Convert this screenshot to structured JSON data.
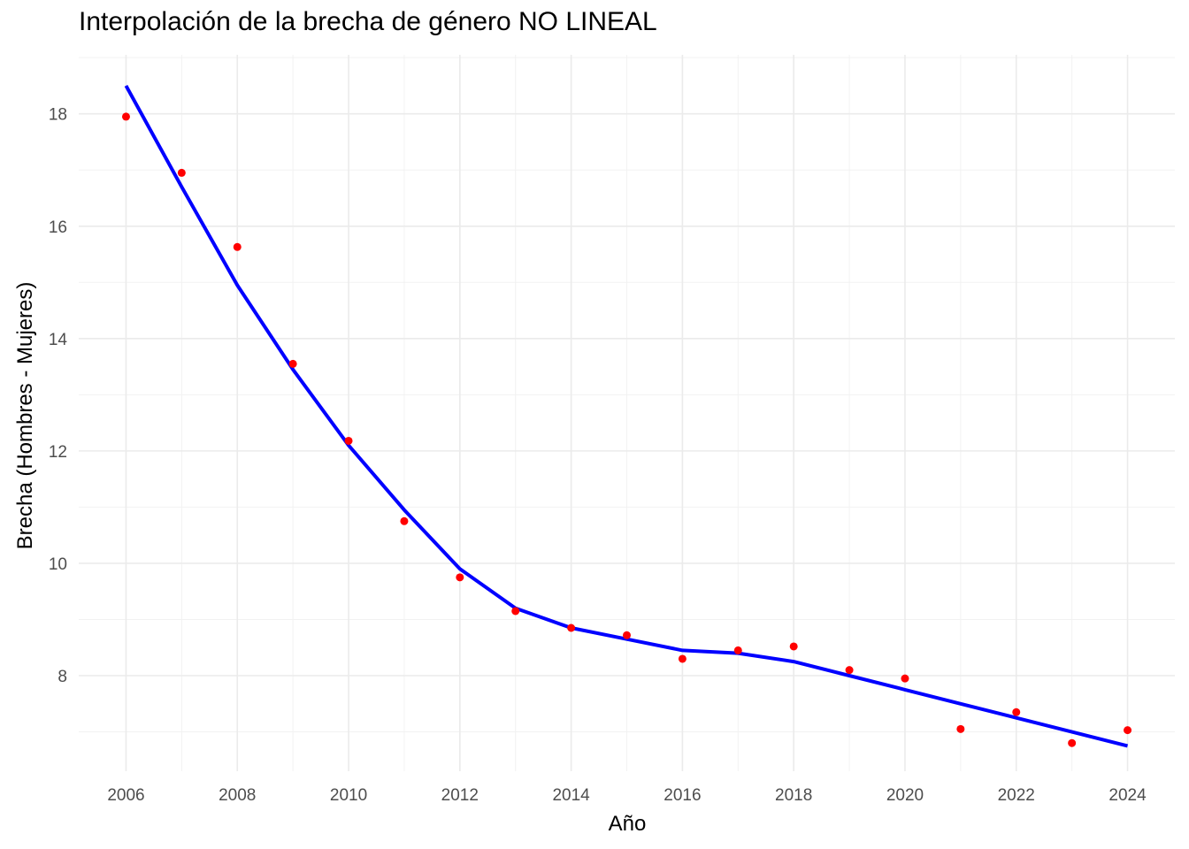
{
  "chart_data": {
    "type": "scatter",
    "title": "Interpolación de la brecha de género NO LINEAL",
    "xlabel": "Año",
    "ylabel": "Brecha (Hombres - Mujeres)",
    "xlim": [
      2005.15,
      2024.85
    ],
    "ylim": [
      6.3,
      19.05
    ],
    "x_ticks": [
      "2006",
      "2008",
      "2010",
      "2012",
      "2014",
      "2016",
      "2018",
      "2020",
      "2022",
      "2024"
    ],
    "y_ticks": [
      "8",
      "10",
      "12",
      "14",
      "16",
      "18"
    ],
    "grid": true,
    "legend": "none",
    "series": [
      {
        "type": "scatter",
        "color": "#ff0000",
        "x": [
          2006,
          2007,
          2008,
          2009,
          2010,
          2011,
          2012,
          2013,
          2014,
          2015,
          2016,
          2017,
          2018,
          2019,
          2020,
          2021,
          2022,
          2023,
          2024
        ],
        "y": [
          17.95,
          16.95,
          15.63,
          13.55,
          12.18,
          10.75,
          9.75,
          9.15,
          8.85,
          8.72,
          8.3,
          8.45,
          8.52,
          8.1,
          7.95,
          7.05,
          7.35,
          6.8,
          7.03
        ]
      },
      {
        "type": "line",
        "color": "#0000ff",
        "x": [
          2006,
          2007,
          2008,
          2009,
          2010,
          2011,
          2012,
          2013,
          2014,
          2015,
          2016,
          2017,
          2018,
          2019,
          2020,
          2021,
          2022,
          2023,
          2024
        ],
        "y": [
          18.5,
          16.7,
          14.95,
          13.45,
          12.1,
          10.95,
          9.9,
          9.2,
          8.85,
          8.65,
          8.45,
          8.4,
          8.25,
          8.0,
          7.75,
          7.5,
          7.25,
          7.0,
          6.75
        ]
      }
    ]
  }
}
